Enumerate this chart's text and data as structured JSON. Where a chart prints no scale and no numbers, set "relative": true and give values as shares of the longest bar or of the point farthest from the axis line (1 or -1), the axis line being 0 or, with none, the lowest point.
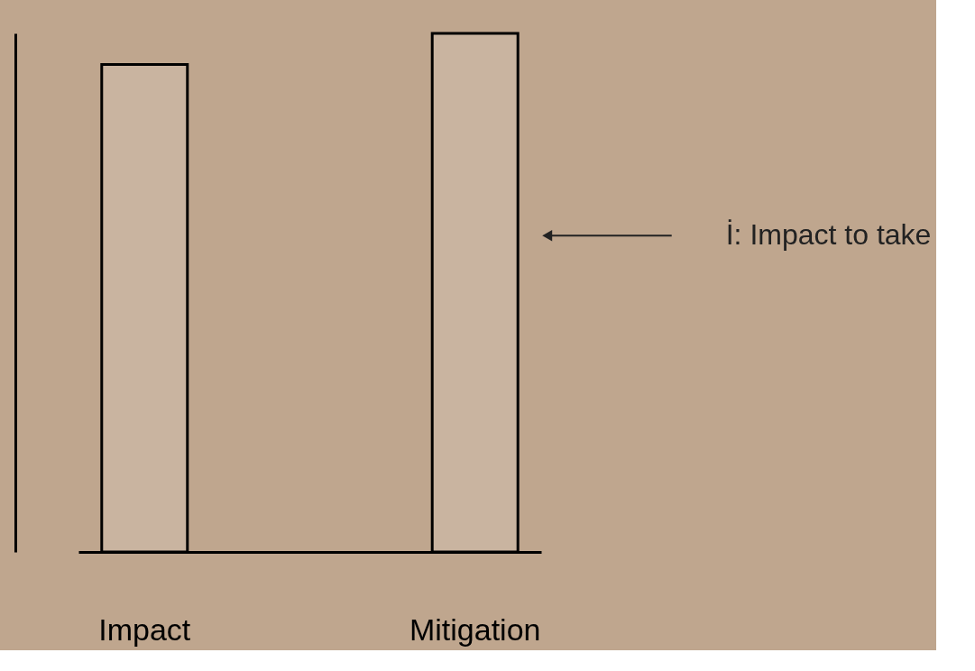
{
  "chart_data": {
    "type": "bar",
    "relative": true,
    "categories": [
      "Impact",
      "Mitigation"
    ],
    "values": [
      0.94,
      1
    ],
    "color": "#c9b4a0",
    "grid": false,
    "annotations": [
      "İ: Impact to take"
    ]
  }
}
